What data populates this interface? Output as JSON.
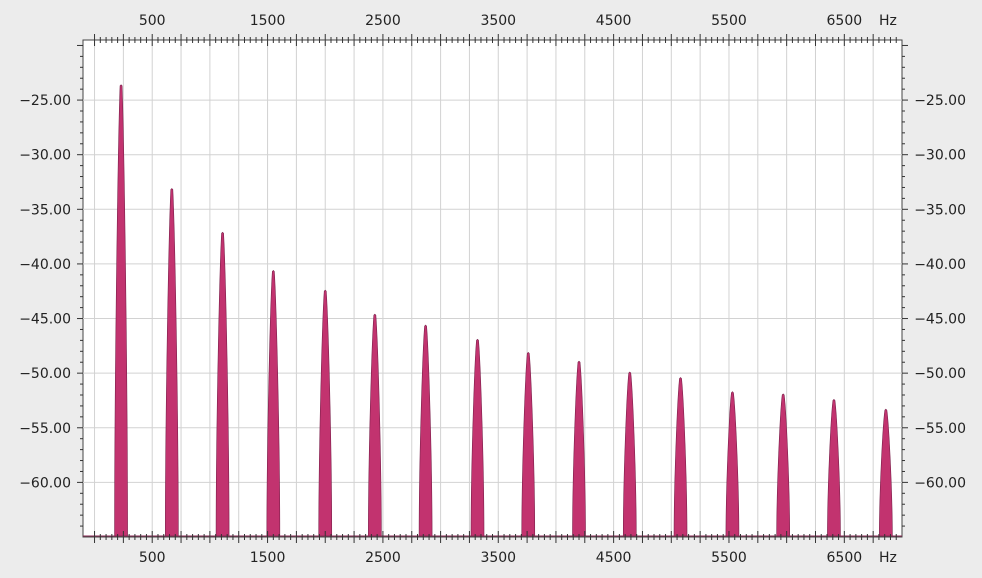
{
  "chart_data": {
    "type": "area",
    "title": "",
    "xlabel": "",
    "ylabel": "",
    "x_unit": "Hz",
    "xlim": [
      -100,
      7000
    ],
    "ylim": [
      -65,
      -19.5
    ],
    "x_ticks": [
      500,
      1500,
      2500,
      3500,
      4500,
      5500,
      6500
    ],
    "x_tick_labels": [
      "500",
      "1500",
      "2500",
      "3500",
      "4500",
      "5500",
      "6500"
    ],
    "y_ticks": [
      -25,
      -30,
      -35,
      -40,
      -45,
      -50,
      -55,
      -60
    ],
    "y_tick_labels": [
      "-25.00",
      "-30.00",
      "-35.00",
      "-40.00",
      "-45.00",
      "-50.00",
      "-55.00",
      "-60.00"
    ],
    "grid": true,
    "series": [
      {
        "color": "#c2336f",
        "peaks": [
          {
            "x": 230,
            "y": -23.6
          },
          {
            "x": 670,
            "y": -33.1
          },
          {
            "x": 1110,
            "y": -37.1
          },
          {
            "x": 1550,
            "y": -40.6
          },
          {
            "x": 2000,
            "y": -42.4
          },
          {
            "x": 2430,
            "y": -44.6
          },
          {
            "x": 2870,
            "y": -45.6
          },
          {
            "x": 3320,
            "y": -46.9
          },
          {
            "x": 3760,
            "y": -48.1
          },
          {
            "x": 4200,
            "y": -48.9
          },
          {
            "x": 4640,
            "y": -49.9
          },
          {
            "x": 5080,
            "y": -50.4
          },
          {
            "x": 5530,
            "y": -51.7
          },
          {
            "x": 5970,
            "y": -51.9
          },
          {
            "x": 6410,
            "y": -52.4
          },
          {
            "x": 6860,
            "y": -53.3
          }
        ]
      }
    ]
  }
}
